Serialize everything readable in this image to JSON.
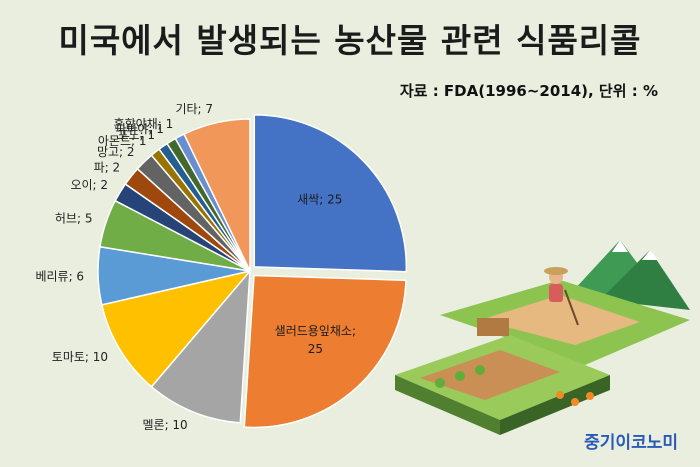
{
  "title": "미국에서 발생되는 농산물 관련 식품리콜",
  "source": "자료 : FDA(1996~2014), 단위 : %",
  "brand": "중기이코노미",
  "chart_data": {
    "type": "pie",
    "title": "미국에서 발생되는 농산물 관련 식품리콜",
    "unit": "%",
    "slices": [
      {
        "label": "새싹",
        "value": 25,
        "color": "#4472c4"
      },
      {
        "label": "샐러드용잎채소",
        "value": 25,
        "color": "#ed7d31"
      },
      {
        "label": "멜론",
        "value": 10,
        "color": "#a5a5a5"
      },
      {
        "label": "토마토",
        "value": 10,
        "color": "#ffc000"
      },
      {
        "label": "베리류",
        "value": 6,
        "color": "#5b9bd5"
      },
      {
        "label": "허브",
        "value": 5,
        "color": "#70ad47"
      },
      {
        "label": "오이",
        "value": 2,
        "color": "#264478"
      },
      {
        "label": "파",
        "value": 2,
        "color": "#9e480e"
      },
      {
        "label": "망고",
        "value": 2,
        "color": "#636363"
      },
      {
        "label": "아몬드",
        "value": 1,
        "color": "#997300"
      },
      {
        "label": "포도",
        "value": 1,
        "color": "#255e91"
      },
      {
        "label": "파파야",
        "value": 1,
        "color": "#43682b"
      },
      {
        "label": "혼합야채",
        "value": 1,
        "color": "#698ed0"
      },
      {
        "label": "기타",
        "value": 7,
        "color": "#f1975a"
      }
    ],
    "start_angle_deg": 0,
    "direction": "clockwise",
    "legend": "none"
  }
}
